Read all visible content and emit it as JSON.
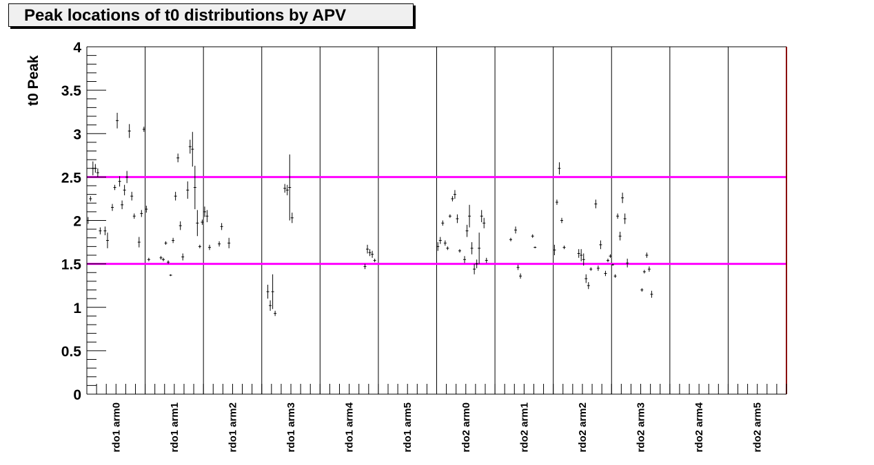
{
  "chart_data": {
    "type": "scatter",
    "title": "Peak locations of t0 distributions by APV",
    "ylabel": "t0 Peak",
    "xlabel": "",
    "ylim": [
      0,
      4
    ],
    "yticks": [
      "0",
      "0.5",
      "1",
      "1.5",
      "2",
      "2.5",
      "3",
      "3.5",
      "4"
    ],
    "categories": [
      "rdo1 arm0",
      "rdo1 arm1",
      "rdo1 arm2",
      "rdo1 arm3",
      "rdo1 arm4",
      "rdo1 arm5",
      "rdo2 arm0",
      "rdo2 arm1",
      "rdo2 arm2",
      "rdo2 arm3",
      "rdo2 arm4",
      "rdo2 arm5"
    ],
    "apv_per_category": 24,
    "reference_lines": [
      {
        "y": 1.5,
        "color": "#ff00ff"
      },
      {
        "y": 2.5,
        "color": "#ff00ff"
      }
    ],
    "grid": "vertical category separators",
    "series": [
      {
        "color": "#000000",
        "points": [
          {
            "x": 0,
            "y": 2.0,
            "err": 0.04
          },
          {
            "x": 1,
            "y": 2.25,
            "err": 0.03
          },
          {
            "x": 2,
            "y": 2.6,
            "err": 0.08
          },
          {
            "x": 3,
            "y": 2.6,
            "err": 0.05
          },
          {
            "x": 4,
            "y": 2.55,
            "err": 0.05
          },
          {
            "x": 5,
            "y": 1.88,
            "err": 0.04
          },
          {
            "x": 7,
            "y": 1.88,
            "err": 0.05
          },
          {
            "x": 8,
            "y": 1.77,
            "err": 0.09
          },
          {
            "x": 10,
            "y": 2.15,
            "err": 0.04
          },
          {
            "x": 11,
            "y": 2.38,
            "err": 0.03
          },
          {
            "x": 12,
            "y": 3.15,
            "err": 0.09
          },
          {
            "x": 13,
            "y": 2.45,
            "err": 0.06
          },
          {
            "x": 14,
            "y": 2.18,
            "err": 0.05
          },
          {
            "x": 15,
            "y": 2.35,
            "err": 0.06
          },
          {
            "x": 16,
            "y": 2.5,
            "err": 0.07
          },
          {
            "x": 17,
            "y": 3.03,
            "err": 0.08
          },
          {
            "x": 18,
            "y": 2.28,
            "err": 0.05
          },
          {
            "x": 19,
            "y": 2.05,
            "err": 0.03
          },
          {
            "x": 21,
            "y": 1.75,
            "err": 0.06
          },
          {
            "x": 22,
            "y": 2.08,
            "err": 0.04
          },
          {
            "x": 23,
            "y": 3.05,
            "err": 0.03
          },
          {
            "x": 24,
            "y": 2.13,
            "err": 0.04
          },
          {
            "x": 25,
            "y": 1.55,
            "err": 0.02
          },
          {
            "x": 30,
            "y": 1.57,
            "err": 0.02
          },
          {
            "x": 31,
            "y": 1.55,
            "err": 0.02
          },
          {
            "x": 32,
            "y": 1.74,
            "err": 0.02
          },
          {
            "x": 33,
            "y": 1.52,
            "err": 0.02
          },
          {
            "x": 34,
            "y": 1.37,
            "err": 0.01
          },
          {
            "x": 35,
            "y": 1.77,
            "err": 0.03
          },
          {
            "x": 36,
            "y": 2.28,
            "err": 0.05
          },
          {
            "x": 37,
            "y": 2.72,
            "err": 0.05
          },
          {
            "x": 38,
            "y": 1.94,
            "err": 0.05
          },
          {
            "x": 39,
            "y": 1.58,
            "err": 0.04
          },
          {
            "x": 41,
            "y": 2.35,
            "err": 0.1
          },
          {
            "x": 42,
            "y": 2.85,
            "err": 0.08
          },
          {
            "x": 43,
            "y": 2.82,
            "err": 0.2
          },
          {
            "x": 44,
            "y": 2.38,
            "err": 0.25
          },
          {
            "x": 45,
            "y": 1.97,
            "err": 0.15
          },
          {
            "x": 46,
            "y": 1.7,
            "err": 0.02
          },
          {
            "x": 47,
            "y": 1.98,
            "err": 0.03
          },
          {
            "x": 48,
            "y": 2.1,
            "err": 0.06
          },
          {
            "x": 49,
            "y": 2.05,
            "err": 0.07
          },
          {
            "x": 50,
            "y": 1.69,
            "err": 0.03
          },
          {
            "x": 54,
            "y": 1.73,
            "err": 0.03
          },
          {
            "x": 55,
            "y": 1.93,
            "err": 0.04
          },
          {
            "x": 58,
            "y": 1.74,
            "err": 0.06
          },
          {
            "x": 74,
            "y": 1.18,
            "err": 0.08
          },
          {
            "x": 75,
            "y": 1.02,
            "err": 0.06
          },
          {
            "x": 76,
            "y": 1.18,
            "err": 0.2
          },
          {
            "x": 77,
            "y": 0.93,
            "err": 0.03
          },
          {
            "x": 81,
            "y": 2.37,
            "err": 0.05
          },
          {
            "x": 82,
            "y": 2.35,
            "err": 0.06
          },
          {
            "x": 83,
            "y": 2.38,
            "err": 0.38
          },
          {
            "x": 84,
            "y": 2.03,
            "err": 0.06
          },
          {
            "x": 114,
            "y": 1.47,
            "err": 0.03
          },
          {
            "x": 115,
            "y": 1.67,
            "err": 0.05
          },
          {
            "x": 116,
            "y": 1.63,
            "err": 0.04
          },
          {
            "x": 117,
            "y": 1.61,
            "err": 0.04
          },
          {
            "x": 118,
            "y": 1.54,
            "err": 0.02
          },
          {
            "x": 144,
            "y": 1.7,
            "err": 0.05
          },
          {
            "x": 145,
            "y": 1.77,
            "err": 0.04
          },
          {
            "x": 146,
            "y": 1.97,
            "err": 0.03
          },
          {
            "x": 147,
            "y": 1.74,
            "err": 0.03
          },
          {
            "x": 148,
            "y": 1.68,
            "err": 0.02
          },
          {
            "x": 149,
            "y": 2.05,
            "err": 0.02
          },
          {
            "x": 150,
            "y": 2.25,
            "err": 0.03
          },
          {
            "x": 151,
            "y": 2.3,
            "err": 0.05
          },
          {
            "x": 152,
            "y": 2.02,
            "err": 0.05
          },
          {
            "x": 153,
            "y": 1.65,
            "err": 0.02
          },
          {
            "x": 155,
            "y": 1.55,
            "err": 0.04
          },
          {
            "x": 156,
            "y": 1.88,
            "err": 0.07
          },
          {
            "x": 157,
            "y": 2.05,
            "err": 0.13
          },
          {
            "x": 158,
            "y": 1.68,
            "err": 0.07
          },
          {
            "x": 159,
            "y": 1.44,
            "err": 0.06
          },
          {
            "x": 160,
            "y": 1.5,
            "err": 0.05
          },
          {
            "x": 161,
            "y": 1.68,
            "err": 0.18
          },
          {
            "x": 162,
            "y": 2.05,
            "err": 0.07
          },
          {
            "x": 163,
            "y": 1.97,
            "err": 0.06
          },
          {
            "x": 164,
            "y": 1.54,
            "err": 0.03
          },
          {
            "x": 174,
            "y": 1.78,
            "err": 0.02
          },
          {
            "x": 176,
            "y": 1.89,
            "err": 0.04
          },
          {
            "x": 177,
            "y": 1.46,
            "err": 0.03
          },
          {
            "x": 178,
            "y": 1.36,
            "err": 0.03
          },
          {
            "x": 183,
            "y": 1.82,
            "err": 0.02
          },
          {
            "x": 184,
            "y": 1.69,
            "err": 0.01
          },
          {
            "x": 192,
            "y": 1.66,
            "err": 0.06
          },
          {
            "x": 193,
            "y": 2.21,
            "err": 0.03
          },
          {
            "x": 194,
            "y": 2.6,
            "err": 0.07
          },
          {
            "x": 195,
            "y": 2.0,
            "err": 0.03
          },
          {
            "x": 196,
            "y": 1.69,
            "err": 0.02
          },
          {
            "x": 202,
            "y": 1.62,
            "err": 0.05
          },
          {
            "x": 203,
            "y": 1.6,
            "err": 0.07
          },
          {
            "x": 204,
            "y": 1.55,
            "err": 0.07
          },
          {
            "x": 205,
            "y": 1.33,
            "err": 0.05
          },
          {
            "x": 206,
            "y": 1.25,
            "err": 0.04
          },
          {
            "x": 207,
            "y": 1.44,
            "err": 0.02
          },
          {
            "x": 209,
            "y": 2.19,
            "err": 0.05
          },
          {
            "x": 210,
            "y": 1.45,
            "err": 0.03
          },
          {
            "x": 211,
            "y": 1.72,
            "err": 0.05
          },
          {
            "x": 213,
            "y": 1.39,
            "err": 0.03
          },
          {
            "x": 214,
            "y": 1.54,
            "err": 0.02
          },
          {
            "x": 215,
            "y": 1.59,
            "err": 0.02
          },
          {
            "x": 216,
            "y": 1.49,
            "err": 0.01
          },
          {
            "x": 217,
            "y": 1.36,
            "err": 0.02
          },
          {
            "x": 218,
            "y": 2.05,
            "err": 0.03
          },
          {
            "x": 219,
            "y": 1.82,
            "err": 0.05
          },
          {
            "x": 220,
            "y": 2.26,
            "err": 0.06
          },
          {
            "x": 221,
            "y": 2.02,
            "err": 0.06
          },
          {
            "x": 222,
            "y": 1.51,
            "err": 0.05
          },
          {
            "x": 228,
            "y": 1.2,
            "err": 0.02
          },
          {
            "x": 229,
            "y": 1.41,
            "err": 0.02
          },
          {
            "x": 230,
            "y": 1.6,
            "err": 0.03
          },
          {
            "x": 231,
            "y": 1.44,
            "err": 0.03
          },
          {
            "x": 232,
            "y": 1.15,
            "err": 0.04
          }
        ]
      }
    ]
  }
}
